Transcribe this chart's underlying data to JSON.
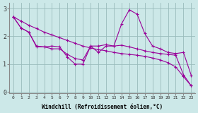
{
  "xlabel": "Windchill (Refroidissement éolien,°C)",
  "background_color": "#cce8e8",
  "line_color": "#990099",
  "grid_color": "#99bbbb",
  "xlim": [
    -0.5,
    23.5
  ],
  "ylim": [
    -0.05,
    3.2
  ],
  "xticks": [
    0,
    1,
    2,
    3,
    4,
    5,
    6,
    7,
    8,
    9,
    10,
    11,
    12,
    13,
    14,
    15,
    16,
    17,
    18,
    19,
    20,
    21,
    22,
    23
  ],
  "yticks": [
    0,
    1,
    2,
    3
  ],
  "curve1_x": [
    0,
    1,
    2,
    3,
    4,
    5,
    6,
    7,
    8,
    9,
    10,
    11,
    12,
    13,
    14,
    15,
    16,
    17,
    18,
    19,
    20,
    21,
    22,
    23
  ],
  "curve1_y": [
    2.7,
    2.3,
    2.15,
    1.65,
    1.62,
    1.65,
    1.62,
    1.25,
    1.0,
    1.0,
    1.65,
    1.42,
    1.65,
    1.65,
    2.45,
    2.95,
    2.8,
    2.1,
    1.65,
    1.55,
    1.42,
    1.38,
    1.42,
    0.6
  ],
  "curve2_x": [
    0,
    1,
    2,
    3,
    4,
    5,
    6,
    7,
    8,
    9,
    10,
    11,
    12,
    13,
    14,
    15,
    16,
    17,
    18,
    19,
    20,
    21,
    22,
    23
  ],
  "curve2_y": [
    2.7,
    2.55,
    2.4,
    2.28,
    2.15,
    2.05,
    1.95,
    1.85,
    1.75,
    1.65,
    1.58,
    1.52,
    1.48,
    1.42,
    1.38,
    1.35,
    1.32,
    1.28,
    1.22,
    1.15,
    1.05,
    0.9,
    0.55,
    0.22
  ],
  "curve3_x": [
    0,
    1,
    2,
    3,
    4,
    5,
    6,
    7,
    8,
    9,
    10,
    11,
    12,
    13,
    14,
    15,
    16,
    17,
    18,
    19,
    20,
    21,
    22,
    23
  ],
  "curve3_y": [
    2.7,
    2.3,
    2.15,
    1.62,
    1.62,
    1.55,
    1.55,
    1.35,
    1.2,
    1.15,
    1.65,
    1.65,
    1.7,
    1.65,
    1.68,
    1.62,
    1.55,
    1.48,
    1.42,
    1.38,
    1.35,
    1.32,
    0.62,
    0.22
  ]
}
